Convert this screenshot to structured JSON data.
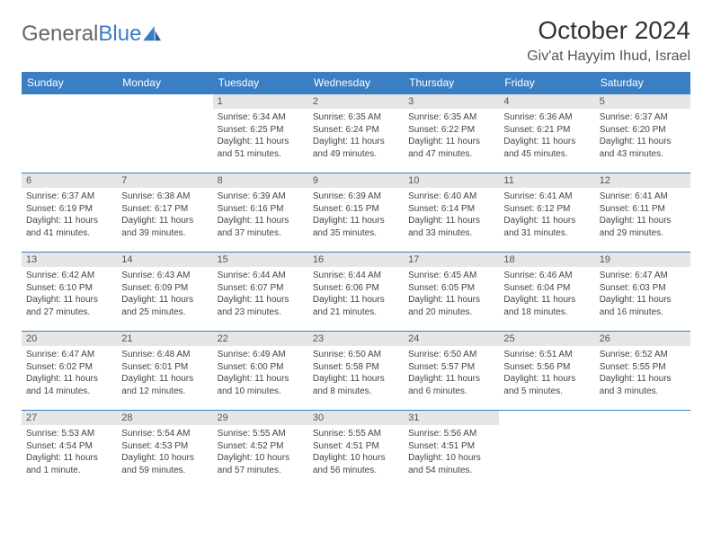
{
  "brand": {
    "name_a": "General",
    "name_b": "Blue"
  },
  "header": {
    "month": "October 2024",
    "location": "Giv'at Hayyim Ihud, Israel"
  },
  "weekdays": [
    "Sunday",
    "Monday",
    "Tuesday",
    "Wednesday",
    "Thursday",
    "Friday",
    "Saturday"
  ],
  "colors": {
    "accent": "#3a7fc4",
    "daynum_bg": "#e6e6e6",
    "text": "#333333"
  },
  "grid": {
    "cols": 7,
    "rows": 5,
    "first_weekday_index": 2,
    "days_in_month": 31
  },
  "days": [
    {
      "n": 1,
      "sunrise": "6:34 AM",
      "sunset": "6:25 PM",
      "daylight": "11 hours and 51 minutes."
    },
    {
      "n": 2,
      "sunrise": "6:35 AM",
      "sunset": "6:24 PM",
      "daylight": "11 hours and 49 minutes."
    },
    {
      "n": 3,
      "sunrise": "6:35 AM",
      "sunset": "6:22 PM",
      "daylight": "11 hours and 47 minutes."
    },
    {
      "n": 4,
      "sunrise": "6:36 AM",
      "sunset": "6:21 PM",
      "daylight": "11 hours and 45 minutes."
    },
    {
      "n": 5,
      "sunrise": "6:37 AM",
      "sunset": "6:20 PM",
      "daylight": "11 hours and 43 minutes."
    },
    {
      "n": 6,
      "sunrise": "6:37 AM",
      "sunset": "6:19 PM",
      "daylight": "11 hours and 41 minutes."
    },
    {
      "n": 7,
      "sunrise": "6:38 AM",
      "sunset": "6:17 PM",
      "daylight": "11 hours and 39 minutes."
    },
    {
      "n": 8,
      "sunrise": "6:39 AM",
      "sunset": "6:16 PM",
      "daylight": "11 hours and 37 minutes."
    },
    {
      "n": 9,
      "sunrise": "6:39 AM",
      "sunset": "6:15 PM",
      "daylight": "11 hours and 35 minutes."
    },
    {
      "n": 10,
      "sunrise": "6:40 AM",
      "sunset": "6:14 PM",
      "daylight": "11 hours and 33 minutes."
    },
    {
      "n": 11,
      "sunrise": "6:41 AM",
      "sunset": "6:12 PM",
      "daylight": "11 hours and 31 minutes."
    },
    {
      "n": 12,
      "sunrise": "6:41 AM",
      "sunset": "6:11 PM",
      "daylight": "11 hours and 29 minutes."
    },
    {
      "n": 13,
      "sunrise": "6:42 AM",
      "sunset": "6:10 PM",
      "daylight": "11 hours and 27 minutes."
    },
    {
      "n": 14,
      "sunrise": "6:43 AM",
      "sunset": "6:09 PM",
      "daylight": "11 hours and 25 minutes."
    },
    {
      "n": 15,
      "sunrise": "6:44 AM",
      "sunset": "6:07 PM",
      "daylight": "11 hours and 23 minutes."
    },
    {
      "n": 16,
      "sunrise": "6:44 AM",
      "sunset": "6:06 PM",
      "daylight": "11 hours and 21 minutes."
    },
    {
      "n": 17,
      "sunrise": "6:45 AM",
      "sunset": "6:05 PM",
      "daylight": "11 hours and 20 minutes."
    },
    {
      "n": 18,
      "sunrise": "6:46 AM",
      "sunset": "6:04 PM",
      "daylight": "11 hours and 18 minutes."
    },
    {
      "n": 19,
      "sunrise": "6:47 AM",
      "sunset": "6:03 PM",
      "daylight": "11 hours and 16 minutes."
    },
    {
      "n": 20,
      "sunrise": "6:47 AM",
      "sunset": "6:02 PM",
      "daylight": "11 hours and 14 minutes."
    },
    {
      "n": 21,
      "sunrise": "6:48 AM",
      "sunset": "6:01 PM",
      "daylight": "11 hours and 12 minutes."
    },
    {
      "n": 22,
      "sunrise": "6:49 AM",
      "sunset": "6:00 PM",
      "daylight": "11 hours and 10 minutes."
    },
    {
      "n": 23,
      "sunrise": "6:50 AM",
      "sunset": "5:58 PM",
      "daylight": "11 hours and 8 minutes."
    },
    {
      "n": 24,
      "sunrise": "6:50 AM",
      "sunset": "5:57 PM",
      "daylight": "11 hours and 6 minutes."
    },
    {
      "n": 25,
      "sunrise": "6:51 AM",
      "sunset": "5:56 PM",
      "daylight": "11 hours and 5 minutes."
    },
    {
      "n": 26,
      "sunrise": "6:52 AM",
      "sunset": "5:55 PM",
      "daylight": "11 hours and 3 minutes."
    },
    {
      "n": 27,
      "sunrise": "5:53 AM",
      "sunset": "4:54 PM",
      "daylight": "11 hours and 1 minute."
    },
    {
      "n": 28,
      "sunrise": "5:54 AM",
      "sunset": "4:53 PM",
      "daylight": "10 hours and 59 minutes."
    },
    {
      "n": 29,
      "sunrise": "5:55 AM",
      "sunset": "4:52 PM",
      "daylight": "10 hours and 57 minutes."
    },
    {
      "n": 30,
      "sunrise": "5:55 AM",
      "sunset": "4:51 PM",
      "daylight": "10 hours and 56 minutes."
    },
    {
      "n": 31,
      "sunrise": "5:56 AM",
      "sunset": "4:51 PM",
      "daylight": "10 hours and 54 minutes."
    }
  ],
  "labels": {
    "sunrise": "Sunrise:",
    "sunset": "Sunset:",
    "daylight": "Daylight:"
  }
}
